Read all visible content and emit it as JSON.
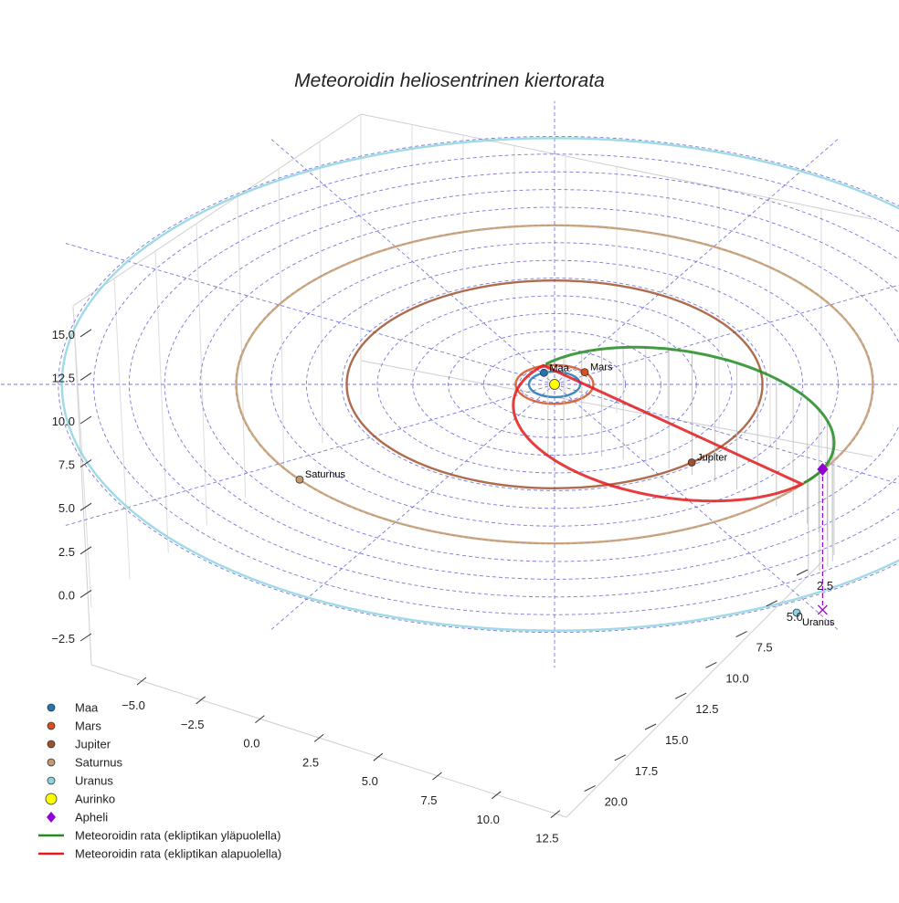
{
  "chart_data": {
    "type": "scatter",
    "title": "Meteoroidin heliosentrinen kiertorata",
    "xlabel": "",
    "ylabel": "",
    "zlabel": "",
    "xlim": [
      -7.5,
      12.5
    ],
    "ylim": [
      0,
      22
    ],
    "zlim": [
      -3.5,
      16
    ],
    "x_ticks": [
      "−5.0",
      "−2.5",
      "0.0",
      "2.5",
      "5.0",
      "7.5",
      "10.0",
      "12.5"
    ],
    "y_ticks": [
      "2.5",
      "5.0",
      "7.5",
      "10.0",
      "12.5",
      "15.0",
      "17.5",
      "20.0"
    ],
    "z_ticks": [
      "−2.5",
      "0.0",
      "2.5",
      "5.0",
      "7.5",
      "10.0",
      "12.5",
      "15.0"
    ],
    "grid": true,
    "legend_position": "bottom-left",
    "planets": [
      {
        "name": "Maa",
        "label": "Maa",
        "orbit_radius_au": 1.0,
        "color": "#1f77b4"
      },
      {
        "name": "Mars",
        "label": "Mars",
        "orbit_radius_au": 1.52,
        "color": "#d6501e"
      },
      {
        "name": "Jupiter",
        "label": "Jupiter",
        "orbit_radius_au": 5.2,
        "color": "#a0522d"
      },
      {
        "name": "Saturnus",
        "label": "Saturnus",
        "orbit_radius_au": 9.5,
        "color": "#c49a6c"
      },
      {
        "name": "Uranus",
        "label": "Uranus",
        "orbit_radius_au": 19.2,
        "color": "#8fd3e0"
      }
    ],
    "sun": {
      "name": "Aurinko",
      "color": "#ffff00"
    },
    "aphelion": {
      "name": "Apheli",
      "color": "#9400d3"
    },
    "meteoroid": {
      "above_ecliptic": {
        "name": "Meteoroidin rata (ekliptikan yläpuolella)",
        "color": "#228b22"
      },
      "below_ecliptic": {
        "name": "Meteoroidin rata (ekliptikan alapuolella)",
        "color": "#e31a1c"
      }
    },
    "legend": [
      {
        "label": "Maa",
        "marker": "circle",
        "color": "#1f77b4"
      },
      {
        "label": "Mars",
        "marker": "circle",
        "color": "#d6501e"
      },
      {
        "label": "Jupiter",
        "marker": "circle",
        "color": "#a0522d"
      },
      {
        "label": "Saturnus",
        "marker": "circle",
        "color": "#c49a6c"
      },
      {
        "label": "Uranus",
        "marker": "circle",
        "color": "#8fd3e0"
      },
      {
        "label": "Aurinko",
        "marker": "circle-large",
        "color": "#ffff00"
      },
      {
        "label": "Apheli",
        "marker": "diamond",
        "color": "#9400d3"
      },
      {
        "label": "Meteoroidin rata (ekliptikan yläpuolella)",
        "marker": "line",
        "color": "#228b22"
      },
      {
        "label": "Meteoroidin rata (ekliptikan alapuolella)",
        "marker": "line",
        "color": "#e31a1c"
      }
    ]
  }
}
